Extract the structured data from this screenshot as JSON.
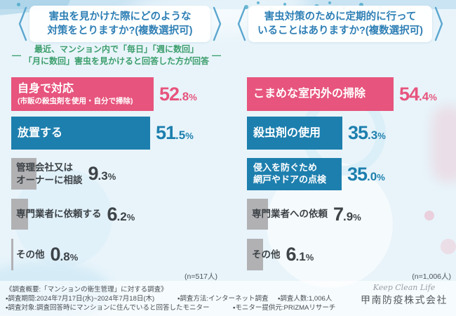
{
  "ui": {
    "dash": "—",
    "left": {
      "title_line1": "害虫を見かけた際にどのような",
      "title_line2": "対策をとりますか?(複数選択可)",
      "subtitle_line1": "最近、マンション内で「毎日」「週に数回」",
      "subtitle_line2": "「月に数回」害虫を見かけると回答した方が回答",
      "n_label": "(n=517人)",
      "rows": [
        {
          "label": "自身で対応",
          "sublabel": "(市販の殺虫剤を使用・自分で掃除)",
          "pct_int": "52",
          "pct_frac": ".8",
          "pct_sign": "%"
        },
        {
          "label": "放置する",
          "pct_int": "51",
          "pct_frac": ".5",
          "pct_sign": "%"
        },
        {
          "label_line1": "管理会社又は",
          "label_line2": "オーナーに相談",
          "pct_int": "9",
          "pct_frac": ".3",
          "pct_sign": "%"
        },
        {
          "label": "専門業者に依頼する",
          "pct_int": "6",
          "pct_frac": ".2",
          "pct_sign": "%"
        },
        {
          "label": "その他",
          "pct_int": "0",
          "pct_frac": ".8",
          "pct_sign": "%"
        }
      ]
    },
    "right": {
      "title_line1": "害虫対策のために定期的に行って",
      "title_line2": "いることはありますか?(複数選択可)",
      "n_label": "(n=1,006人)",
      "rows": [
        {
          "label": "こまめな室内外の掃除",
          "pct_int": "54",
          "pct_frac": ".4",
          "pct_sign": "%"
        },
        {
          "label": "殺虫剤の使用",
          "pct_int": "35",
          "pct_frac": ".3",
          "pct_sign": "%"
        },
        {
          "label_line1": "侵入を防ぐため",
          "label_line2": "網戸やドアの点検",
          "pct_int": "35",
          "pct_frac": ".0",
          "pct_sign": "%"
        },
        {
          "label": "専門業者への依頼",
          "pct_int": "7",
          "pct_frac": ".9",
          "pct_sign": "%"
        },
        {
          "label": "その他",
          "pct_int": "6",
          "pct_frac": ".1",
          "pct_sign": "%"
        }
      ]
    },
    "footer": {
      "overview": "《調査概要:「マンションの衛生管理」に対する調査》",
      "period": "▪調査期間:2024年7月17日(水)~2024年7月18日(木)",
      "method": "▪調査方法:インターネット調査",
      "count": "▪調査人数:1,006人",
      "target": "▪調査対象:調査回答時にマンションに住んでいると回答したモニター",
      "monitor": "▪モニター提供元:PRIZMAリサーチ"
    },
    "brand": {
      "tagline": "Keep Clean Life",
      "company": "甲南防疫株式会社"
    }
  },
  "chart_data": [
    {
      "type": "bar",
      "orientation": "horizontal",
      "title": "害虫を見かけた際にどのような対策をとりますか?(複数選択可)",
      "subtitle": "最近、マンション内で「毎日」「週に数回」「月に数回」害虫を見かけると回答した方が回答",
      "categories": [
        "自身で対応(市販の殺虫剤を使用・自分で掃除)",
        "放置する",
        "管理会社又はオーナーに相談",
        "専門業者に依頼する",
        "その他"
      ],
      "values": [
        52.8,
        51.5,
        9.3,
        6.2,
        0.8
      ],
      "unit": "%",
      "sample_label": "(n=517人)",
      "bar_colors": [
        "#e7547d",
        "#1d7fae",
        "#b1b1b4",
        "#b1b1b4",
        "#b1b1b4"
      ],
      "xlim": [
        0,
        60
      ],
      "grid": false,
      "legend": false,
      "value_labels": true
    },
    {
      "type": "bar",
      "orientation": "horizontal",
      "title": "害虫対策のために定期的に行っていることはありますか?(複数選択可)",
      "categories": [
        "こまめな室内外の掃除",
        "殺虫剤の使用",
        "侵入を防ぐため網戸やドアの点検",
        "専門業者への依頼",
        "その他"
      ],
      "values": [
        54.4,
        35.3,
        35.0,
        7.9,
        6.1
      ],
      "unit": "%",
      "sample_label": "(n=1,006人)",
      "bar_colors": [
        "#e7547d",
        "#1d7fae",
        "#1d7fae",
        "#b1b1b4",
        "#b1b1b4"
      ],
      "xlim": [
        0,
        60
      ],
      "grid": false,
      "legend": false,
      "value_labels": true
    }
  ],
  "colors": {
    "pink": "#e7547d",
    "blue": "#1d7fae",
    "gray_bar": "#b1b1b4",
    "header_text": "#2e7fb5",
    "subtitle_green": "#3c9e6c",
    "dark_text": "#3d4347",
    "background": "#e8f4fa"
  }
}
